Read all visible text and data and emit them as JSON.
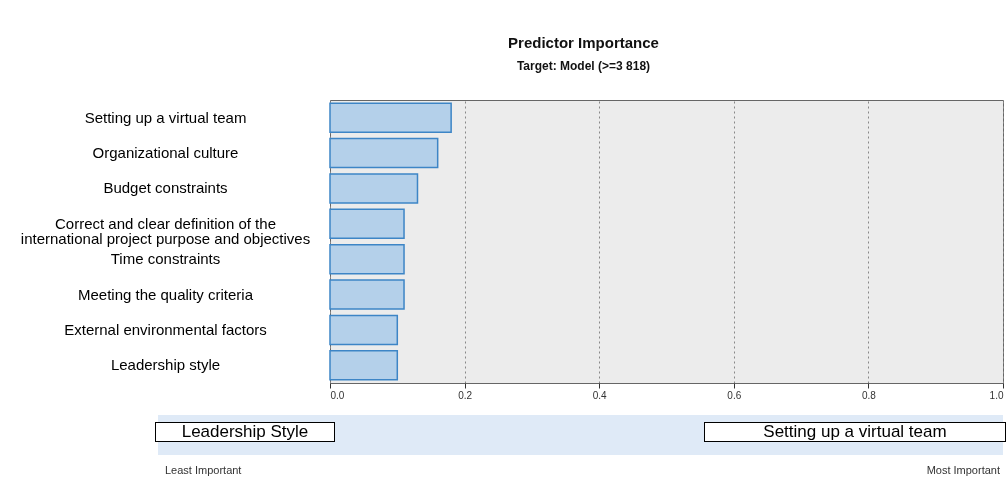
{
  "chart_data": {
    "type": "bar",
    "orientation": "horizontal",
    "title": "Predictor Importance",
    "subtitle": "Target: Model (>=3 818)",
    "categories": [
      "Setting up a virtual team",
      "Organizational culture",
      "Budget constraints",
      "Correct and clear definition of the international project purpose and objectives",
      "Time constraints",
      "Meeting the quality criteria",
      "External environmental factors",
      "Leadership style"
    ],
    "values": [
      0.18,
      0.16,
      0.13,
      0.11,
      0.11,
      0.11,
      0.1,
      0.1
    ],
    "color": "#b4d0ea",
    "xlim": [
      0,
      1
    ],
    "xticks": [
      {
        "value": 0,
        "label": "0.0"
      },
      {
        "value": 0.2,
        "label": "0.2"
      },
      {
        "value": 0.4,
        "label": "0.4"
      },
      {
        "value": 0.6,
        "label": "0.6"
      },
      {
        "value": 0.8,
        "label": "0.8"
      },
      {
        "value": 1,
        "label": "1.0"
      }
    ],
    "grid": "x",
    "annotations": [
      "Leadership Style",
      "Setting up a virtual team",
      "Least Important",
      "Most Important"
    ]
  }
}
